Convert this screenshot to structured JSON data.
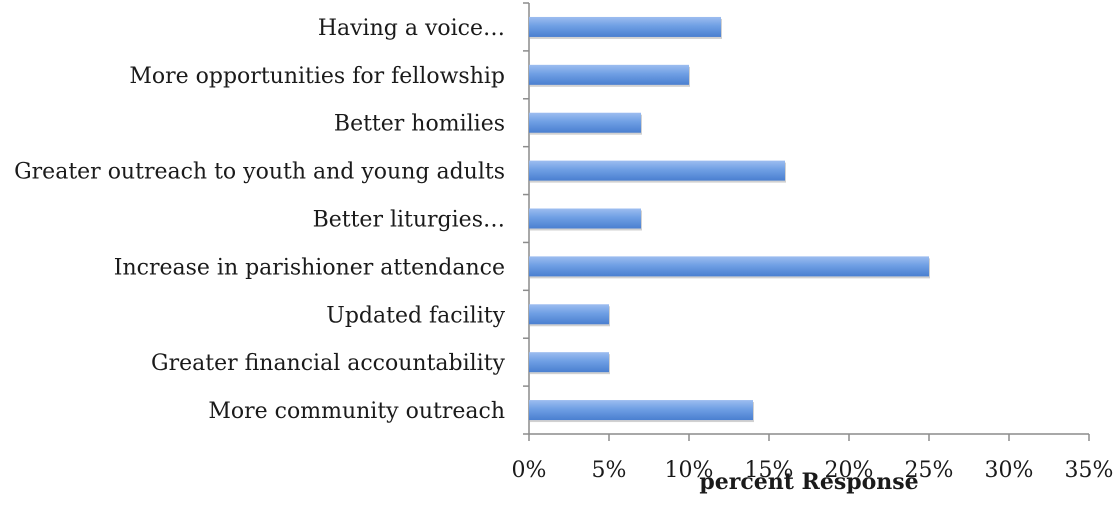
{
  "chart_data": {
    "type": "bar",
    "orientation": "horizontal",
    "categories": [
      "Having a voice…",
      "More opportunities for fellowship",
      "Better homilies",
      "Greater outreach to youth and young adults",
      "Better liturgies…",
      "Increase in parishioner attendance",
      "Updated facility",
      "Greater financial accountability",
      "More community outreach"
    ],
    "values": [
      12,
      10,
      7,
      16,
      7,
      25,
      5,
      5,
      14
    ],
    "xlim": [
      0,
      35
    ],
    "xticks": [
      0,
      5,
      10,
      15,
      20,
      25,
      30,
      35
    ],
    "xtick_labels": [
      "0%",
      "5%",
      "10%",
      "15%",
      "20%",
      "25%",
      "30%",
      "35%"
    ],
    "xlabel": "percent Response",
    "ylabel": "",
    "title": "",
    "grid": false,
    "legend": "none",
    "bar_color": "#5b8fd8"
  }
}
